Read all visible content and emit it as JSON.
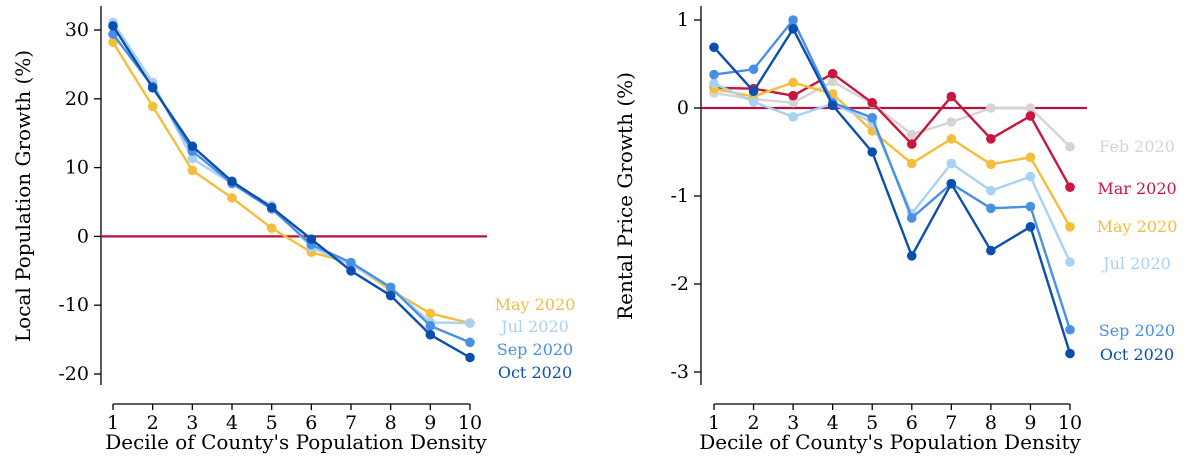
{
  "chart_data": [
    {
      "type": "line",
      "xlabel": "Decile of County's Population Density",
      "ylabel": "Local Population Growth (%)",
      "x": [
        1,
        2,
        3,
        4,
        5,
        6,
        7,
        8,
        9,
        10
      ],
      "xlim": [
        1,
        10
      ],
      "ylim": [
        -22,
        33
      ],
      "yticks": [
        30,
        20,
        10,
        0,
        -10,
        -20
      ],
      "ytick_labels": [
        "30",
        "20",
        "10",
        "0",
        "-10",
        "-20"
      ],
      "xtick_labels": [
        "1",
        "2",
        "3",
        "4",
        "5",
        "6",
        "7",
        "8",
        "9",
        "10"
      ],
      "reference_line": {
        "y": 0,
        "color": "#b5123f"
      },
      "legend": "direct labels at right end of each line",
      "series": [
        {
          "name": "May 2020",
          "color": "#f5bd3c",
          "values": [
            28.2,
            18.9,
            9.6,
            5.6,
            1.2,
            -2.3,
            -3.9,
            -7.8,
            -11.2,
            -12.6
          ]
        },
        {
          "name": "Jul 2020",
          "color": "#a9d1f3",
          "values": [
            31.1,
            22.4,
            11.3,
            7.7,
            4.5,
            -1.6,
            -4.1,
            -7.4,
            -12.5,
            -12.6
          ]
        },
        {
          "name": "Sep 2020",
          "color": "#4a90e2",
          "values": [
            29.4,
            21.8,
            12.4,
            7.7,
            4.0,
            -1.2,
            -3.8,
            -7.4,
            -13.0,
            -15.4
          ]
        },
        {
          "name": "Oct 2020",
          "color": "#0a4fb0",
          "values": [
            30.6,
            21.6,
            13.1,
            8.0,
            4.2,
            -0.4,
            -5.0,
            -8.6,
            -14.3,
            -17.6
          ]
        }
      ]
    },
    {
      "type": "line",
      "xlabel": "Decile of County's Population Density",
      "ylabel": "Rental Price Growth (%)",
      "x": [
        1,
        2,
        3,
        4,
        5,
        6,
        7,
        8,
        9,
        10
      ],
      "xlim": [
        1,
        10
      ],
      "ylim": [
        -3.2,
        1.15
      ],
      "yticks": [
        1,
        0,
        -1,
        -2,
        -3
      ],
      "ytick_labels": [
        "1",
        "0",
        "-1",
        "-2",
        "-3"
      ],
      "xtick_labels": [
        "1",
        "2",
        "3",
        "4",
        "5",
        "6",
        "7",
        "8",
        "9",
        "10"
      ],
      "reference_line": {
        "y": 0,
        "color": "#b5123f"
      },
      "legend": "direct labels at right end of each line",
      "series": [
        {
          "name": "Feb 2020",
          "color": "#d4d4d4",
          "values": [
            0.17,
            0.1,
            0.06,
            0.3,
            0.05,
            -0.3,
            -0.16,
            0.0,
            0.0,
            -0.44
          ]
        },
        {
          "name": "Mar 2020",
          "color": "#c8163e",
          "values": [
            0.23,
            0.22,
            0.14,
            0.39,
            0.06,
            -0.41,
            0.13,
            -0.35,
            -0.09,
            -0.9
          ]
        },
        {
          "name": "May 2020",
          "color": "#f5bd3c",
          "values": [
            0.22,
            0.13,
            0.29,
            0.16,
            -0.26,
            -0.63,
            -0.35,
            -0.64,
            -0.56,
            -1.35
          ]
        },
        {
          "name": "Jul 2020",
          "color": "#a9d1f3",
          "values": [
            0.28,
            0.07,
            -0.1,
            0.05,
            -0.16,
            -1.2,
            -0.63,
            -0.94,
            -0.78,
            -1.75
          ]
        },
        {
          "name": "Sep 2020",
          "color": "#4a90e2",
          "values": [
            0.38,
            0.44,
            1.0,
            0.06,
            -0.11,
            -1.25,
            -0.86,
            -1.14,
            -1.12,
            -2.52
          ]
        },
        {
          "name": "Oct 2020",
          "color": "#0a4fb0",
          "values": [
            0.69,
            0.19,
            0.9,
            0.03,
            -0.5,
            -1.68,
            -0.86,
            -1.62,
            -1.35,
            -2.79
          ]
        }
      ]
    }
  ]
}
